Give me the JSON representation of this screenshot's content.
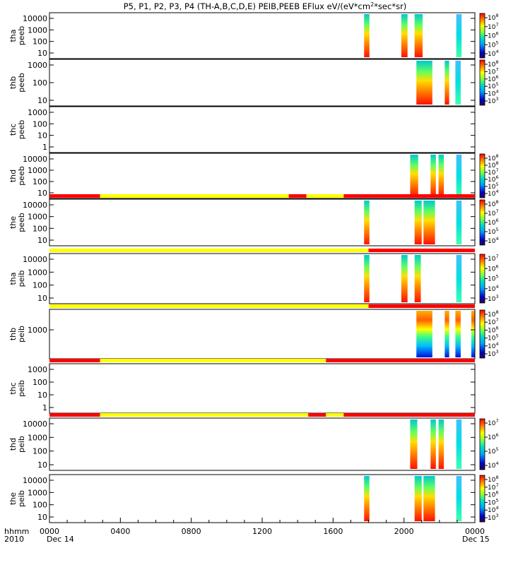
{
  "chart_data": {
    "type": "heatmap",
    "title": "P5, P1, P2, P3, P4 (TH-A,B,C,D,E) PEIB,PEEB EFlux eV/(eV*cm",
    "title_sup": "2",
    "title_end": "*sec*sr)",
    "x_axis": {
      "start": "0000",
      "end": "0000",
      "ticks": [
        "0000",
        "0400",
        "0800",
        "1200",
        "1600",
        "2000",
        "0000"
      ],
      "tick_hours": [
        0,
        4,
        8,
        12,
        16,
        20,
        24
      ],
      "date_labels": [
        "Dec 14",
        "Dec 15"
      ],
      "left_labels": [
        "hhmm",
        "2010"
      ]
    },
    "panels": [
      {
        "probe": "tha",
        "product": "peeb",
        "yticks": [
          "10000",
          "1000",
          "100",
          "10"
        ],
        "colorbar": [
          "10^8",
          "10^7",
          "10^6",
          "10^5",
          "10^4"
        ],
        "bursts": [
          [
            17.75,
            18.05
          ],
          [
            19.85,
            20.2
          ],
          [
            20.6,
            21.05
          ],
          [
            22.95,
            23.25
          ]
        ],
        "quality_bar": null
      },
      {
        "probe": "thb",
        "product": "peeb",
        "yticks": [
          "1000",
          "100",
          "10"
        ],
        "colorbar": [
          "10^8",
          "10^7",
          "10^6",
          "10^5",
          "10^4",
          "10^3"
        ],
        "bursts": [
          [
            20.7,
            21.6
          ],
          [
            22.3,
            22.55
          ],
          [
            22.9,
            23.2
          ]
        ],
        "quality_bar": null
      },
      {
        "probe": "thc",
        "product": "peeb",
        "yticks": [
          "1000",
          "100",
          "10",
          "1"
        ],
        "colorbar": [],
        "bursts": [],
        "quality_bar": null
      },
      {
        "probe": "thd",
        "product": "peeb",
        "yticks": [
          "10000",
          "1000",
          "100",
          "10"
        ],
        "colorbar": [
          "10^8",
          "10^8",
          "10^7",
          "10^6",
          "10^5",
          "10^4"
        ],
        "bursts": [
          [
            20.35,
            20.8
          ],
          [
            21.5,
            21.8
          ],
          [
            21.95,
            22.25
          ],
          [
            22.95,
            23.25
          ]
        ],
        "quality_bar": null
      },
      {
        "probe": "the",
        "product": "peeb",
        "yticks": [
          "10000",
          "1000",
          "100",
          "10"
        ],
        "colorbar": [
          "10^8",
          "10^7",
          "10^6",
          "10^5",
          "10^4"
        ],
        "bursts": [
          [
            17.75,
            18.05
          ],
          [
            20.6,
            21.0
          ],
          [
            21.1,
            21.75
          ],
          [
            22.95,
            23.25
          ]
        ],
        "quality_bar": [
          [
            "red",
            0,
            2.85
          ],
          [
            "yellow",
            2.85,
            13.5
          ],
          [
            "red",
            13.5,
            14.5
          ],
          [
            "yellow",
            14.5,
            16.6
          ],
          [
            "red",
            16.6,
            24
          ]
        ]
      },
      {
        "probe": "tha",
        "product": "peib",
        "yticks": [
          "10000",
          "1000",
          "100",
          "10"
        ],
        "colorbar": [
          "10^7",
          "10^6",
          "10^5",
          "10^4",
          "10^3"
        ],
        "bursts": [
          [
            17.75,
            18.05
          ],
          [
            19.85,
            20.2
          ],
          [
            20.6,
            20.95
          ],
          [
            22.95,
            23.25
          ]
        ],
        "quality_bar": [
          [
            "yellow",
            0,
            18.0
          ],
          [
            "red",
            18.0,
            24
          ]
        ]
      },
      {
        "probe": "thb",
        "product": "peib",
        "yticks": [
          "1000"
        ],
        "colorbar": [
          "10^8",
          "10^7",
          "10^6",
          "10^5",
          "10^4",
          "10^3"
        ],
        "bursts": [
          [
            20.7,
            21.6
          ],
          [
            22.3,
            22.55
          ],
          [
            22.9,
            23.2
          ],
          [
            23.8,
            24.0
          ]
        ],
        "quality_bar": [
          [
            "yellow",
            0,
            18.0
          ],
          [
            "red",
            18.0,
            24
          ]
        ]
      },
      {
        "probe": "thc",
        "product": "peib",
        "yticks": [
          "1000",
          "100",
          "10",
          "1"
        ],
        "colorbar": [],
        "bursts": [],
        "quality_bar": [
          [
            "red",
            0,
            2.85
          ],
          [
            "yellow",
            2.85,
            15.6
          ],
          [
            "red",
            15.6,
            24
          ]
        ]
      },
      {
        "probe": "thd",
        "product": "peib",
        "yticks": [
          "10000",
          "1000",
          "100",
          "10"
        ],
        "colorbar": [
          "10^7",
          "10^6",
          "10^5",
          "10^4"
        ],
        "bursts": [
          [
            20.35,
            20.75
          ],
          [
            21.5,
            21.8
          ],
          [
            21.95,
            22.25
          ],
          [
            22.95,
            23.25
          ]
        ],
        "quality_bar": [
          [
            "red",
            0,
            2.85
          ],
          [
            "yellow",
            2.85,
            14.6
          ],
          [
            "red",
            14.6,
            15.6
          ],
          [
            "yellow",
            15.6,
            16.6
          ],
          [
            "red",
            16.6,
            24
          ]
        ]
      },
      {
        "probe": "the",
        "product": "peib",
        "yticks": [
          "10000",
          "1000",
          "100",
          "10"
        ],
        "colorbar": [
          "10^8",
          "10^7",
          "10^6",
          "10^5",
          "10^4",
          "10^3"
        ],
        "bursts": [
          [
            17.75,
            18.05
          ],
          [
            20.6,
            21.0
          ],
          [
            21.1,
            21.75
          ],
          [
            22.95,
            23.25
          ]
        ],
        "quality_bar": null
      }
    ]
  }
}
